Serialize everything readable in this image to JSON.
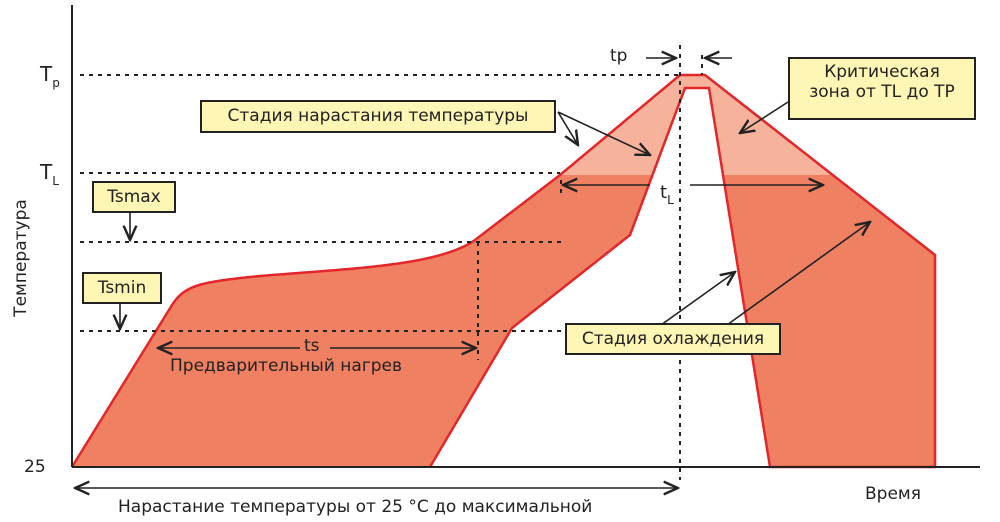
{
  "axes": {
    "y_label": "Температура",
    "x_label": "Время",
    "y_base": "25"
  },
  "levels": {
    "tp": "T",
    "tp_sub": "p",
    "tl": "T",
    "tl_sub": "L"
  },
  "labels": {
    "ramp_stage": "Стадия нарастания температуры",
    "critical_zone": "Критическая зона от TL до TP",
    "tsmax": "Tsmax",
    "tsmin": "Tsmin",
    "cooling": "Стадия охлаждения",
    "ts": "ts",
    "preheat": "Предварительный нагрев",
    "tp_time": "tp",
    "tl_time": "t",
    "tl_time_sub": "L",
    "ramp_total": "Нарастание температуры от 25 °C до максимальной"
  },
  "colors": {
    "band": "#f08062",
    "critical": "#f6b29b",
    "outline": "#e2262a",
    "box": "#fdf6b5"
  }
}
